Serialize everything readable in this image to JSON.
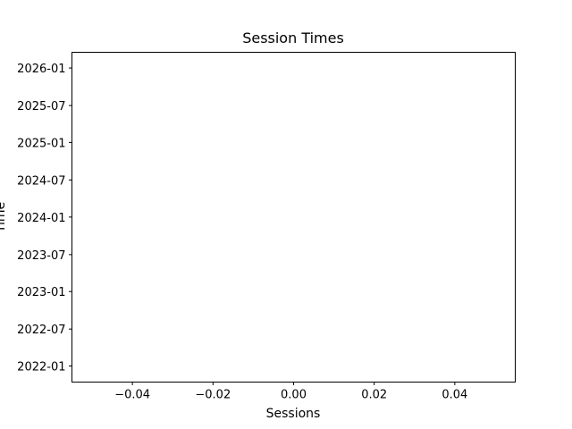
{
  "chart_data": {
    "type": "scatter",
    "title": "Session Times",
    "xlabel": "Sessions",
    "ylabel": "Time",
    "xlim": [
      -0.055,
      0.055
    ],
    "ylim": [
      "2021-10-14",
      "2026-03-19"
    ],
    "x_ticks": [
      {
        "value": -0.04,
        "label": "−0.04"
      },
      {
        "value": -0.02,
        "label": "−0.02"
      },
      {
        "value": 0.0,
        "label": "0.00"
      },
      {
        "value": 0.02,
        "label": "0.02"
      },
      {
        "value": 0.04,
        "label": "0.04"
      }
    ],
    "y_ticks": [
      {
        "value": "2022-01-01",
        "label": "2022-01"
      },
      {
        "value": "2022-07-01",
        "label": "2022-07"
      },
      {
        "value": "2023-01-01",
        "label": "2023-01"
      },
      {
        "value": "2023-07-01",
        "label": "2023-07"
      },
      {
        "value": "2024-01-01",
        "label": "2024-01"
      },
      {
        "value": "2024-07-01",
        "label": "2024-07"
      },
      {
        "value": "2025-01-01",
        "label": "2025-01"
      },
      {
        "value": "2025-07-01",
        "label": "2025-07"
      },
      {
        "value": "2026-01-01",
        "label": "2026-01"
      }
    ],
    "points": [],
    "grid": false,
    "legend": "none",
    "colors": {
      "axes": "#000000",
      "background": "#ffffff"
    }
  }
}
